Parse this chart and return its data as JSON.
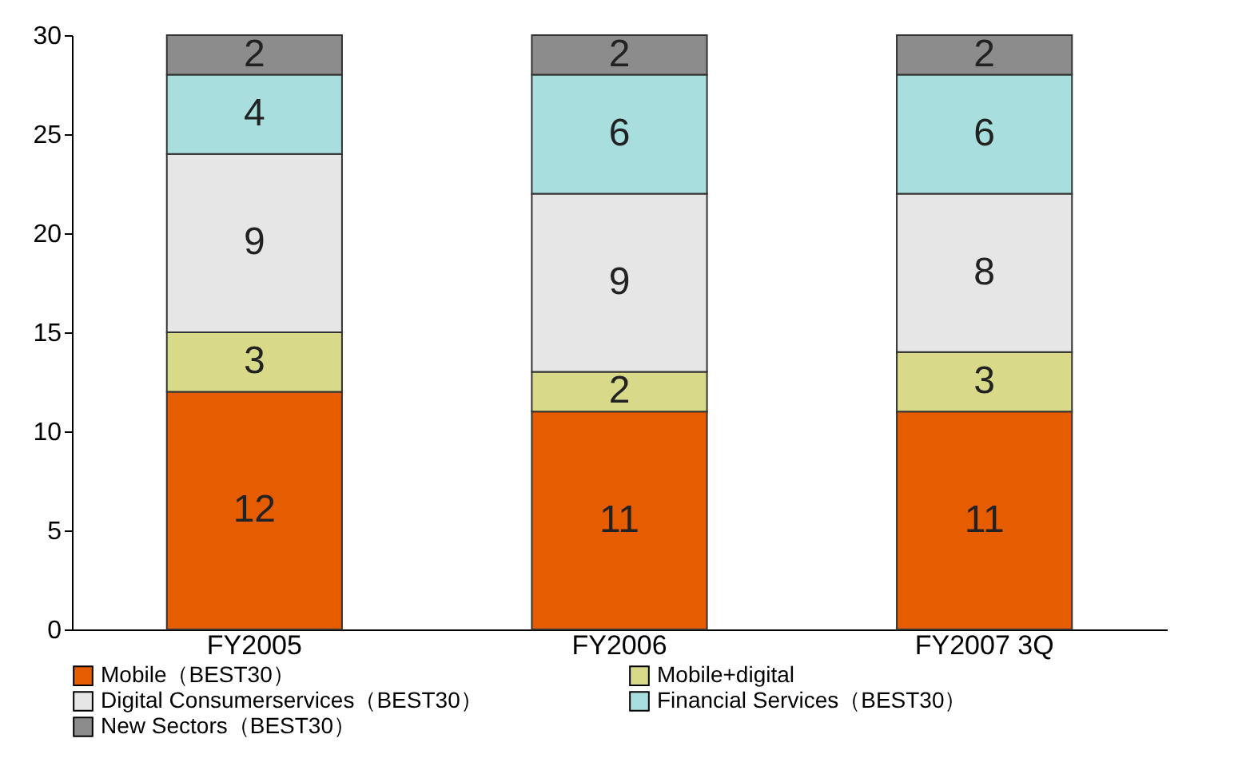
{
  "chart_data": {
    "type": "bar",
    "stacked": true,
    "categories": [
      "FY2005",
      "FY2006",
      "FY2007 3Q"
    ],
    "series": [
      {
        "name": "Mobile（BEST30）",
        "color": "#e65c00",
        "values": [
          12,
          11,
          11
        ]
      },
      {
        "name": "Mobile+digital",
        "color": "#d9d98a",
        "values": [
          3,
          2,
          3
        ]
      },
      {
        "name": "Digital Consumerservices（BEST30）",
        "color": "#e6e6e6",
        "values": [
          9,
          9,
          8
        ]
      },
      {
        "name": "Financial Services（BEST30）",
        "color": "#a8dede",
        "values": [
          4,
          6,
          6
        ]
      },
      {
        "name": "New Sectors（BEST30）",
        "color": "#8c8c8c",
        "values": [
          2,
          2,
          2
        ]
      }
    ],
    "ylim": [
      0,
      30
    ],
    "yticks": [
      0,
      5,
      10,
      15,
      20,
      25,
      30
    ],
    "data_labels": true,
    "legend": "bottom",
    "grid": false
  }
}
